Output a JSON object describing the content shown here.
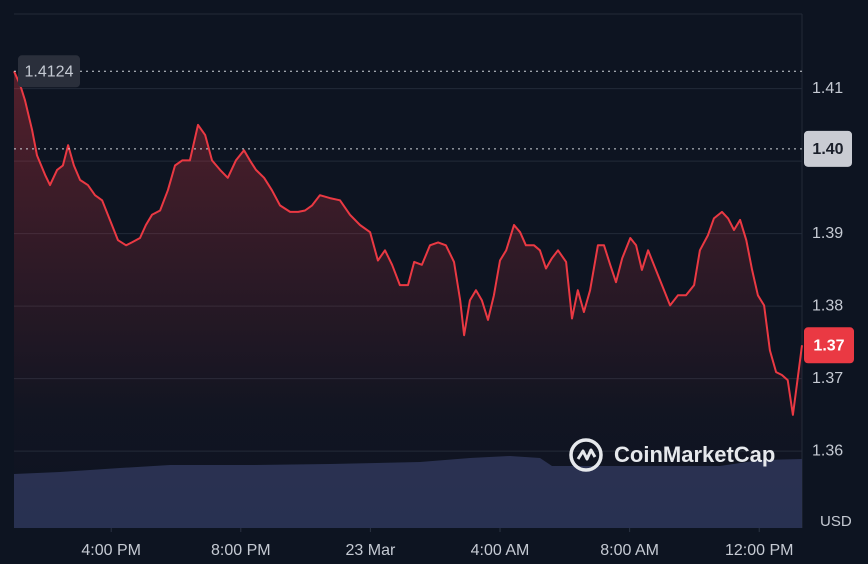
{
  "chart_data": {
    "type": "line",
    "color": "#ea3943",
    "y_axis_label": "USD",
    "watermark": "CoinMarketCap",
    "high": 1.4124,
    "open": {
      "value": 1.4017,
      "label": "1.40"
    },
    "last": {
      "value": 1.3746,
      "label": "1.37"
    },
    "xlim": [
      13,
      37.32
    ],
    "xticks": [
      {
        "value": 16,
        "label": "4:00 PM"
      },
      {
        "value": 20,
        "label": "8:00 PM"
      },
      {
        "value": 24,
        "label": "23 Mar"
      },
      {
        "value": 28,
        "label": "4:00 AM"
      },
      {
        "value": 32,
        "label": "8:00 AM"
      },
      {
        "value": 36,
        "label": "12:00 PM"
      }
    ],
    "ylim": [
      1.3494,
      1.4203
    ],
    "yticks": [
      1.36,
      1.37,
      1.38,
      1.39,
      1.4,
      1.41
    ],
    "grid": true,
    "x": [
      13.0,
      13.19,
      13.34,
      13.56,
      13.71,
      13.96,
      14.11,
      14.33,
      14.51,
      14.67,
      14.85,
      15.04,
      15.28,
      15.5,
      15.72,
      15.96,
      16.21,
      16.46,
      16.64,
      16.89,
      17.07,
      17.26,
      17.51,
      17.75,
      17.97,
      18.19,
      18.43,
      18.68,
      18.9,
      19.11,
      19.36,
      19.6,
      19.85,
      20.1,
      20.28,
      20.47,
      20.72,
      20.96,
      21.21,
      21.52,
      21.77,
      21.98,
      22.2,
      22.44,
      22.75,
      23.06,
      23.37,
      23.68,
      23.99,
      24.23,
      24.45,
      24.67,
      24.91,
      25.16,
      25.35,
      25.59,
      25.84,
      26.09,
      26.33,
      26.58,
      26.77,
      26.89,
      27.07,
      27.26,
      27.44,
      27.63,
      27.81,
      28.0,
      28.19,
      28.43,
      28.62,
      28.8,
      29.05,
      29.23,
      29.42,
      29.6,
      29.79,
      30.04,
      30.22,
      30.4,
      30.59,
      30.78,
      31.02,
      31.21,
      31.4,
      31.58,
      31.77,
      32.02,
      32.2,
      32.38,
      32.57,
      32.81,
      33.0,
      33.25,
      33.49,
      33.74,
      33.99,
      34.17,
      34.42,
      34.6,
      34.85,
      35.04,
      35.22,
      35.41,
      35.6,
      35.78,
      35.96,
      36.15,
      36.33,
      36.52,
      36.7,
      36.88,
      37.04,
      37.16,
      37.32
    ],
    "values": [
      1.4124,
      1.4105,
      1.4084,
      1.4043,
      1.4008,
      1.3981,
      1.3967,
      1.3988,
      1.3994,
      1.4022,
      1.3994,
      1.3974,
      1.3967,
      1.3953,
      1.3946,
      1.3919,
      1.3891,
      1.3884,
      1.3888,
      1.3894,
      1.3912,
      1.3926,
      1.3932,
      1.396,
      1.3994,
      1.4001,
      1.4001,
      1.405,
      1.4036,
      1.4001,
      1.3988,
      1.3977,
      1.4001,
      1.4015,
      1.4001,
      1.3988,
      1.3977,
      1.396,
      1.3939,
      1.393,
      1.393,
      1.3932,
      1.3939,
      1.3953,
      1.3949,
      1.3946,
      1.3926,
      1.3912,
      1.3902,
      1.3863,
      1.3877,
      1.3857,
      1.3829,
      1.3829,
      1.3861,
      1.3857,
      1.3884,
      1.3888,
      1.3884,
      1.3861,
      1.3808,
      1.376,
      1.3808,
      1.3822,
      1.3808,
      1.3781,
      1.3815,
      1.3863,
      1.3877,
      1.3912,
      1.3902,
      1.3884,
      1.3884,
      1.3877,
      1.3852,
      1.3866,
      1.3877,
      1.3861,
      1.3783,
      1.3822,
      1.3792,
      1.3822,
      1.3884,
      1.3884,
      1.3857,
      1.3833,
      1.3866,
      1.3894,
      1.3884,
      1.385,
      1.3877,
      1.385,
      1.3829,
      1.3801,
      1.3815,
      1.3815,
      1.3829,
      1.3877,
      1.3898,
      1.3921,
      1.393,
      1.3921,
      1.3905,
      1.3919,
      1.3891,
      1.385,
      1.3815,
      1.3801,
      1.3739,
      1.3709,
      1.3705,
      1.3698,
      1.365,
      1.3691,
      1.3746
    ]
  }
}
